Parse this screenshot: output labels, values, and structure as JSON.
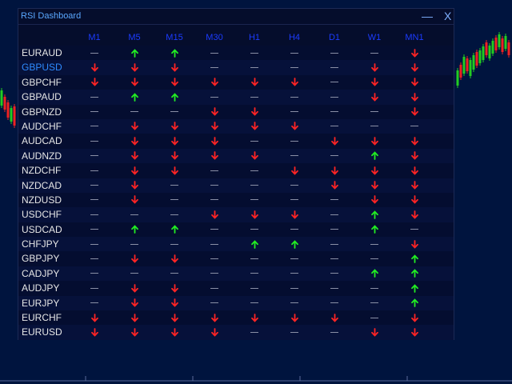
{
  "window": {
    "title": "RSI Dashboard",
    "minimize_label": "—",
    "close_label": "X"
  },
  "colors": {
    "up": "#22ee22",
    "down": "#ff2424",
    "neutral": "#8a8fa6",
    "header": "#1c3cff"
  },
  "timeframes": [
    "M1",
    "M5",
    "M15",
    "M30",
    "H1",
    "H4",
    "D1",
    "W1",
    "MN1"
  ],
  "pairs": [
    {
      "name": "EURAUD",
      "active": false,
      "signals": [
        "none",
        "up",
        "up",
        "none",
        "none",
        "none",
        "none",
        "none",
        "down"
      ]
    },
    {
      "name": "GBPUSD",
      "active": true,
      "signals": [
        "down",
        "down",
        "down",
        "none",
        "none",
        "none",
        "none",
        "down",
        "down"
      ]
    },
    {
      "name": "GBPCHF",
      "active": false,
      "signals": [
        "down",
        "down",
        "down",
        "down",
        "down",
        "down",
        "none",
        "down",
        "down"
      ]
    },
    {
      "name": "GBPAUD",
      "active": false,
      "signals": [
        "none",
        "up",
        "up",
        "none",
        "none",
        "none",
        "none",
        "down",
        "down"
      ]
    },
    {
      "name": "GBPNZD",
      "active": false,
      "signals": [
        "none",
        "none",
        "none",
        "down",
        "down",
        "none",
        "none",
        "none",
        "down"
      ]
    },
    {
      "name": "AUDCHF",
      "active": false,
      "signals": [
        "none",
        "down",
        "down",
        "down",
        "down",
        "down",
        "none",
        "none",
        "none"
      ]
    },
    {
      "name": "AUDCAD",
      "active": false,
      "signals": [
        "none",
        "down",
        "down",
        "down",
        "none",
        "none",
        "down",
        "down",
        "down"
      ]
    },
    {
      "name": "AUDNZD",
      "active": false,
      "signals": [
        "none",
        "down",
        "down",
        "down",
        "down",
        "none",
        "none",
        "up",
        "down"
      ]
    },
    {
      "name": "NZDCHF",
      "active": false,
      "signals": [
        "none",
        "down",
        "down",
        "none",
        "none",
        "down",
        "down",
        "down",
        "down"
      ]
    },
    {
      "name": "NZDCAD",
      "active": false,
      "signals": [
        "none",
        "down",
        "none",
        "none",
        "none",
        "none",
        "down",
        "down",
        "down"
      ]
    },
    {
      "name": "NZDUSD",
      "active": false,
      "signals": [
        "none",
        "down",
        "none",
        "none",
        "none",
        "none",
        "none",
        "down",
        "down"
      ]
    },
    {
      "name": "USDCHF",
      "active": false,
      "signals": [
        "none",
        "none",
        "none",
        "down",
        "down",
        "down",
        "none",
        "up",
        "down"
      ]
    },
    {
      "name": "USDCAD",
      "active": false,
      "signals": [
        "none",
        "up",
        "up",
        "none",
        "none",
        "none",
        "none",
        "up",
        "none"
      ]
    },
    {
      "name": "CHFJPY",
      "active": false,
      "signals": [
        "none",
        "none",
        "none",
        "none",
        "up",
        "up",
        "none",
        "none",
        "down"
      ]
    },
    {
      "name": "GBPJPY",
      "active": false,
      "signals": [
        "none",
        "down",
        "down",
        "none",
        "none",
        "none",
        "none",
        "none",
        "up"
      ]
    },
    {
      "name": "CADJPY",
      "active": false,
      "signals": [
        "none",
        "none",
        "none",
        "none",
        "none",
        "none",
        "none",
        "up",
        "up"
      ]
    },
    {
      "name": "AUDJPY",
      "active": false,
      "signals": [
        "none",
        "down",
        "down",
        "none",
        "none",
        "none",
        "none",
        "none",
        "up"
      ]
    },
    {
      "name": "EURJPY",
      "active": false,
      "signals": [
        "none",
        "down",
        "down",
        "none",
        "none",
        "none",
        "none",
        "none",
        "up"
      ]
    },
    {
      "name": "EURCHF",
      "active": false,
      "signals": [
        "down",
        "down",
        "down",
        "down",
        "down",
        "down",
        "down",
        "none",
        "down"
      ]
    },
    {
      "name": "EURUSD",
      "active": false,
      "signals": [
        "down",
        "down",
        "down",
        "down",
        "none",
        "none",
        "none",
        "down",
        "down"
      ]
    }
  ]
}
